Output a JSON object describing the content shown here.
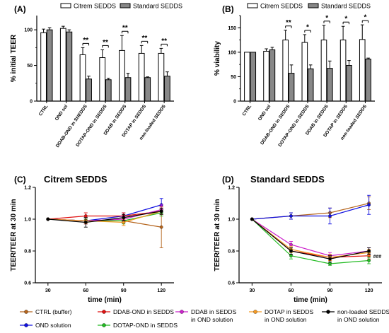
{
  "chart_data": [
    {
      "panel": "(A)",
      "type": "bar",
      "ylabel": "% initial TEER",
      "ylim": [
        0,
        120
      ],
      "yticks": [
        0,
        50,
        100
      ],
      "legend_position": "top",
      "categories": [
        "CTRL",
        "OND sol",
        "DDAB-OND in SNEDDS",
        "DOTAP-OND in SEDDS",
        "DDAB in SEDDS",
        "DOTAP in SEDDS",
        "non-loaded SEDDS"
      ],
      "series": [
        {
          "name": "Citrem SEDDS",
          "fill": "#ffffff",
          "values": [
            96,
            102,
            65,
            61,
            71,
            67,
            67
          ],
          "errors": [
            5,
            3,
            10,
            11,
            21,
            11,
            7
          ]
        },
        {
          "name": "Standard SEDDS",
          "fill": "#888888",
          "values": [
            100,
            97,
            31,
            30,
            33,
            33,
            35
          ],
          "errors": [
            3,
            3,
            4,
            2,
            6,
            1,
            6
          ]
        }
      ],
      "annotations": [
        "",
        "",
        "**",
        "**",
        "**",
        "**",
        "**"
      ]
    },
    {
      "panel": "(B)",
      "type": "bar",
      "ylabel": "% viability",
      "ylim": [
        0,
        175
      ],
      "yticks": [
        0,
        50,
        100,
        150
      ],
      "legend_position": "top",
      "categories": [
        "CTRL",
        "OND sol",
        "DDAB-OND in SEDDS",
        "DOTAP-OND in SEDDS",
        "DDAB in SEDDS",
        "DOTAP in SEDDS",
        "non-loaded SEDDS"
      ],
      "series": [
        {
          "name": "Citrem SEDDS",
          "fill": "#ffffff",
          "values": [
            100,
            102,
            125,
            120,
            125,
            125,
            126
          ],
          "errors": [
            0,
            5,
            20,
            16,
            30,
            28,
            30
          ]
        },
        {
          "name": "Standard SEDDS",
          "fill": "#888888",
          "values": [
            100,
            105,
            57,
            66,
            67,
            73,
            86
          ],
          "errors": [
            0,
            5,
            17,
            8,
            15,
            10,
            2
          ]
        }
      ],
      "annotations": [
        "",
        "",
        "**",
        "*",
        "*",
        "*",
        "*"
      ]
    },
    {
      "panel": "(C)",
      "title": "Citrem SEDDS",
      "type": "line",
      "xlabel": "time (min)",
      "ylabel": "TEER/TEER at 30 min",
      "xlim": [
        20,
        130
      ],
      "ylim": [
        0.6,
        1.2
      ],
      "xticks": [
        30,
        60,
        90,
        120
      ],
      "yticks": [
        0.6,
        0.8,
        1.0,
        1.2
      ],
      "ytick_labels": [
        "0.6",
        "0.8",
        "1.0",
        "1.2"
      ],
      "x": [
        30,
        60,
        90,
        120
      ],
      "series": [
        {
          "name": "CTRL (buffer)",
          "color": "#b5651d",
          "values": [
            1.0,
            0.99,
            0.99,
            0.95
          ],
          "errors": [
            0,
            0.02,
            0.03,
            0.13
          ]
        },
        {
          "name": "OND solution",
          "color": "#1010e0",
          "values": [
            1.0,
            0.99,
            1.02,
            1.09
          ],
          "errors": [
            0,
            0.02,
            0.02,
            0.04
          ]
        },
        {
          "name": "DDAB-OND in SEDDS",
          "color": "#e01010",
          "values": [
            1.0,
            1.02,
            1.02,
            1.05
          ],
          "errors": [
            0,
            0.02,
            0.02,
            0.03
          ]
        },
        {
          "name": "DOTAP-OND in SEDDS",
          "color": "#22bb22",
          "values": [
            1.0,
            0.99,
            0.99,
            1.04
          ],
          "errors": [
            0,
            0.01,
            0.02,
            0.02
          ]
        },
        {
          "name": "DDAB in SEDDS\nin OND solution",
          "color": "#cc22cc",
          "values": [
            1.0,
            0.99,
            1.0,
            1.06
          ],
          "errors": [
            0,
            0.02,
            0.02,
            0.03
          ]
        },
        {
          "name": "DOTAP in SEDDS\nin OND solution",
          "color": "#f59a23",
          "values": [
            1.0,
            0.99,
            0.98,
            1.05
          ],
          "errors": [
            0,
            0.02,
            0.02,
            0.02
          ]
        },
        {
          "name": "non-loaded SEDDS\nin OND solution",
          "color": "#000000",
          "values": [
            1.0,
            0.98,
            1.01,
            1.05
          ],
          "errors": [
            0,
            0.03,
            0.02,
            0.02
          ]
        }
      ]
    },
    {
      "panel": "(D)",
      "title": "Standard SEDDS",
      "type": "line",
      "xlabel": "time (min)",
      "ylabel": "TEER/TEER at 30 min",
      "xlim": [
        20,
        130
      ],
      "ylim": [
        0.6,
        1.2
      ],
      "xticks": [
        30,
        60,
        90,
        120
      ],
      "yticks": [
        0.6,
        0.8,
        1.0,
        1.2
      ],
      "ytick_labels": [
        "0.6",
        "0.8",
        "1.0",
        "1.2"
      ],
      "annotation": "###",
      "x": [
        30,
        60,
        90,
        120
      ],
      "series": [
        {
          "name": "CTRL (buffer)",
          "color": "#b5651d",
          "values": [
            1.0,
            1.02,
            1.04,
            1.1
          ],
          "errors": [
            0,
            0.02,
            0.03,
            0.04
          ]
        },
        {
          "name": "OND solution",
          "color": "#1010e0",
          "values": [
            1.0,
            1.02,
            1.02,
            1.09
          ],
          "errors": [
            0,
            0.02,
            0.05,
            0.06
          ]
        },
        {
          "name": "DDAB-OND in SEDDS",
          "color": "#e01010",
          "values": [
            1.0,
            0.8,
            0.76,
            0.77
          ],
          "errors": [
            0,
            0.02,
            0.02,
            0.02
          ]
        },
        {
          "name": "DOTAP-OND in SEDDS",
          "color": "#22bb22",
          "values": [
            1.0,
            0.77,
            0.72,
            0.74
          ],
          "errors": [
            0,
            0.02,
            0.01,
            0.02
          ]
        },
        {
          "name": "DDAB in SEDDS\nin OND solution",
          "color": "#cc22cc",
          "values": [
            1.0,
            0.84,
            0.77,
            0.8
          ],
          "errors": [
            0,
            0.02,
            0.02,
            0.02
          ]
        },
        {
          "name": "DOTAP in SEDDS\nin OND solution",
          "color": "#f59a23",
          "values": [
            1.0,
            0.81,
            0.76,
            0.79
          ],
          "errors": [
            0,
            0.02,
            0.02,
            0.02
          ]
        },
        {
          "name": "non-loaded SEDDS\nin OND solution",
          "color": "#000000",
          "values": [
            1.0,
            0.8,
            0.75,
            0.8
          ],
          "errors": [
            0,
            0.02,
            0.02,
            0.02
          ]
        }
      ]
    }
  ]
}
